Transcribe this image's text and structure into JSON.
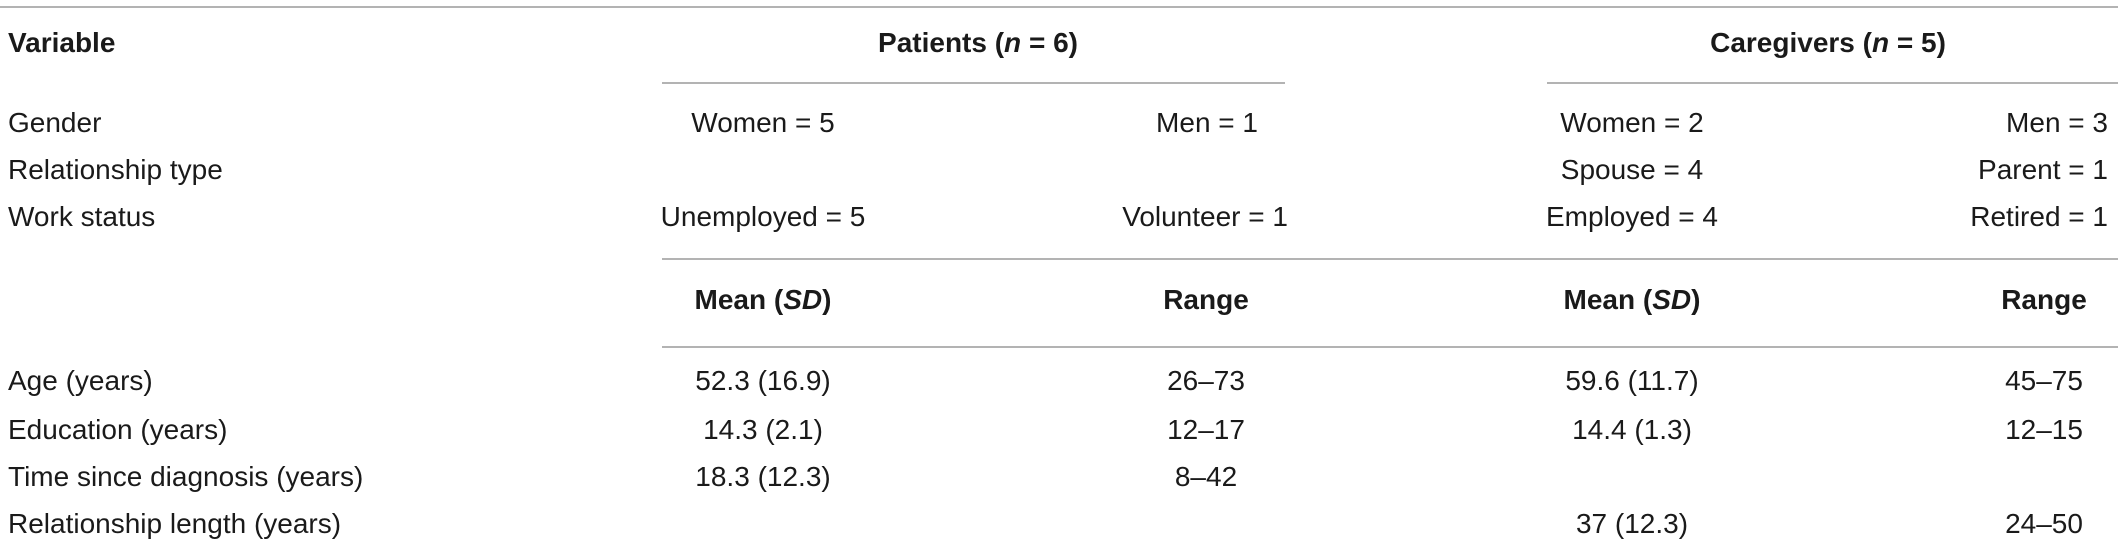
{
  "header": {
    "variable": "Variable",
    "patients_prefix": "Patients (",
    "patients_n": "n",
    "patients_suffix": " = 6)",
    "caregivers_prefix": "Caregivers (",
    "caregivers_n": "n",
    "caregivers_suffix": " = 5)"
  },
  "categorical_rows": [
    {
      "label": "Gender",
      "p1": "Women = 5",
      "p2": "Men = 1",
      "c1": "Women = 2",
      "c2": "Men = 3"
    },
    {
      "label": "Relationship type",
      "p1": "",
      "p2": "",
      "c1": "Spouse = 4",
      "c2": "Parent = 1"
    },
    {
      "label": "Work status",
      "p1": "Unemployed = 5",
      "p2": "Volunteer = 1",
      "c1": "Employed = 4",
      "c2": "Retired = 1"
    }
  ],
  "subheader": {
    "mean_prefix": "Mean (",
    "sd": "SD",
    "mean_suffix": ")",
    "range": "Range"
  },
  "numeric_rows": [
    {
      "label": "Age (years)",
      "p_mean": "52.3 (16.9)",
      "p_range": "26–73",
      "c_mean": "59.6 (11.7)",
      "c_range": "45–75"
    },
    {
      "label": "Education (years)",
      "p_mean": "14.3 (2.1)",
      "p_range": "12–17",
      "c_mean": "14.4 (1.3)",
      "c_range": "12–15"
    },
    {
      "label": "Time since diagnosis (years)",
      "p_mean": "18.3 (12.3)",
      "p_range": "8–42",
      "c_mean": "",
      "c_range": ""
    },
    {
      "label": "Relationship length (years)",
      "p_mean": "",
      "p_range": "",
      "c_mean": "37 (12.3)",
      "c_range": "24–50"
    }
  ]
}
